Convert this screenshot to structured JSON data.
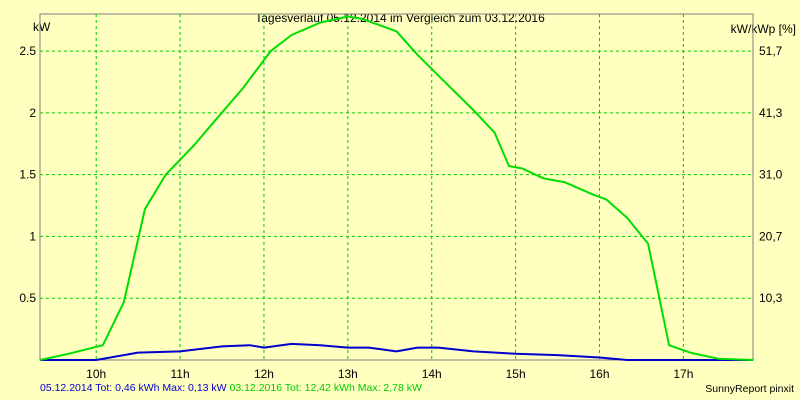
{
  "chart_data": {
    "type": "line",
    "title": "Tagesverlauf 05.12.2014 im Vergleich zum 03.12.2016",
    "ylabel_left": "kW",
    "ylabel_right": "kW/kWp [%]",
    "xlim": [
      9.33,
      17.83
    ],
    "ylim": [
      0,
      2.8
    ],
    "x_ticks": [
      10,
      11,
      12,
      13,
      14,
      15,
      16,
      17
    ],
    "x_tick_labels": [
      "10h",
      "11h",
      "12h",
      "13h",
      "14h",
      "15h",
      "16h",
      "17h"
    ],
    "y_ticks": [
      0.5,
      1,
      1.5,
      2,
      2.5
    ],
    "y_tick_labels": [
      "0.5",
      "1",
      "1.5",
      "2",
      "2.5"
    ],
    "y2_ticks": [
      0.5,
      1,
      1.5,
      2,
      2.5
    ],
    "y2_tick_labels": [
      "10,3",
      "20,7",
      "31,0",
      "41,3",
      "51,7"
    ],
    "grid": true,
    "series": [
      {
        "name": "05.12.2014",
        "color": "#0000cc",
        "x": [
          9.33,
          10.0,
          10.5,
          11.0,
          11.5,
          11.83,
          12.0,
          12.33,
          12.67,
          13.0,
          13.25,
          13.58,
          13.83,
          14.08,
          14.5,
          15.0,
          15.5,
          16.0,
          16.33,
          16.83,
          17.5,
          17.83
        ],
        "y": [
          0.0,
          0.0,
          0.06,
          0.07,
          0.11,
          0.12,
          0.1,
          0.13,
          0.12,
          0.1,
          0.1,
          0.07,
          0.1,
          0.1,
          0.07,
          0.05,
          0.04,
          0.02,
          0.0,
          0.0,
          0.0,
          0.0
        ]
      },
      {
        "name": "03.12.2016",
        "color": "#00dd00",
        "x": [
          9.33,
          9.67,
          10.08,
          10.33,
          10.58,
          10.83,
          11.0,
          11.17,
          11.42,
          11.75,
          12.08,
          12.33,
          12.67,
          13.0,
          13.17,
          13.58,
          13.83,
          14.17,
          14.5,
          14.75,
          14.92,
          15.08,
          15.33,
          15.58,
          15.92,
          16.08,
          16.33,
          16.58,
          16.83,
          17.08,
          17.42,
          17.83
        ],
        "y": [
          0.0,
          0.05,
          0.12,
          0.47,
          1.22,
          1.5,
          1.62,
          1.74,
          1.94,
          2.2,
          2.5,
          2.63,
          2.73,
          2.78,
          2.76,
          2.66,
          2.47,
          2.24,
          2.02,
          1.84,
          1.57,
          1.55,
          1.47,
          1.44,
          1.34,
          1.3,
          1.15,
          0.94,
          0.12,
          0.06,
          0.01,
          0.0
        ]
      }
    ]
  },
  "footer": {
    "series1_text": "05.12.2014 Tot: 0,46 kWh Max: 0,13 kW",
    "series2_text": "03.12.2016 Tot: 12,42 kWh Max: 2,78 kW",
    "credit": "SunnyReport pinxit"
  }
}
